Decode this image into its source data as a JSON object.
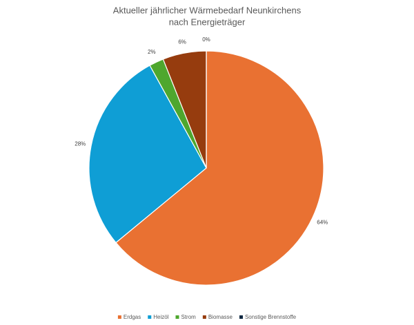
{
  "chart_data": {
    "type": "pie",
    "title": [
      "Aktueller jährlicher Wärmebedarf Neunkirchens",
      "nach Energieträger"
    ],
    "categories": [
      "Erdgas",
      "Heizöl",
      "Strom",
      "Biomasse",
      "Sonstige Brennstoffe"
    ],
    "values": [
      64,
      28,
      2,
      6,
      0
    ],
    "value_labels": [
      "64%",
      "28%",
      "2%",
      "6%",
      "0%"
    ],
    "colors": [
      "#e97132",
      "#0f9ed5",
      "#4ea72e",
      "#963c0e",
      "#0e2841"
    ],
    "legend": "bottom"
  }
}
